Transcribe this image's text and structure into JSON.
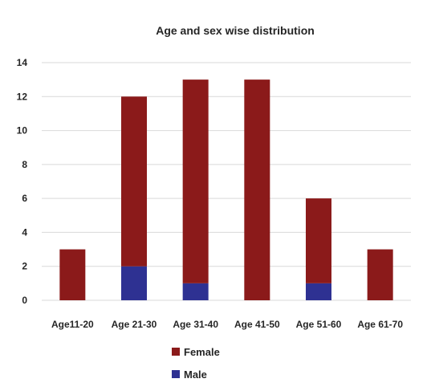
{
  "chart_data": {
    "type": "bar",
    "stacked": true,
    "title": "Age and sex wise distribution",
    "xlabel": "",
    "ylabel": "",
    "categories": [
      "Age11-20",
      "Age 21-30",
      "Age 31-40",
      "Age 41-50",
      "Age 51-60",
      "Age 61-70"
    ],
    "series": [
      {
        "name": "Male",
        "color": "#2e3192",
        "values": [
          0,
          2,
          1,
          0,
          1,
          0
        ]
      },
      {
        "name": "Female",
        "color": "#8b1a1a",
        "values": [
          3,
          10,
          12,
          13,
          5,
          3
        ]
      }
    ],
    "ylim": [
      0,
      14
    ],
    "yticks": [
      0,
      2,
      4,
      6,
      8,
      10,
      12,
      14
    ],
    "grid": true,
    "legend": {
      "position": "bottom",
      "entries": [
        {
          "label": "Female",
          "color": "#8b1a1a"
        },
        {
          "label": "Male",
          "color": "#2e3192"
        }
      ]
    }
  }
}
